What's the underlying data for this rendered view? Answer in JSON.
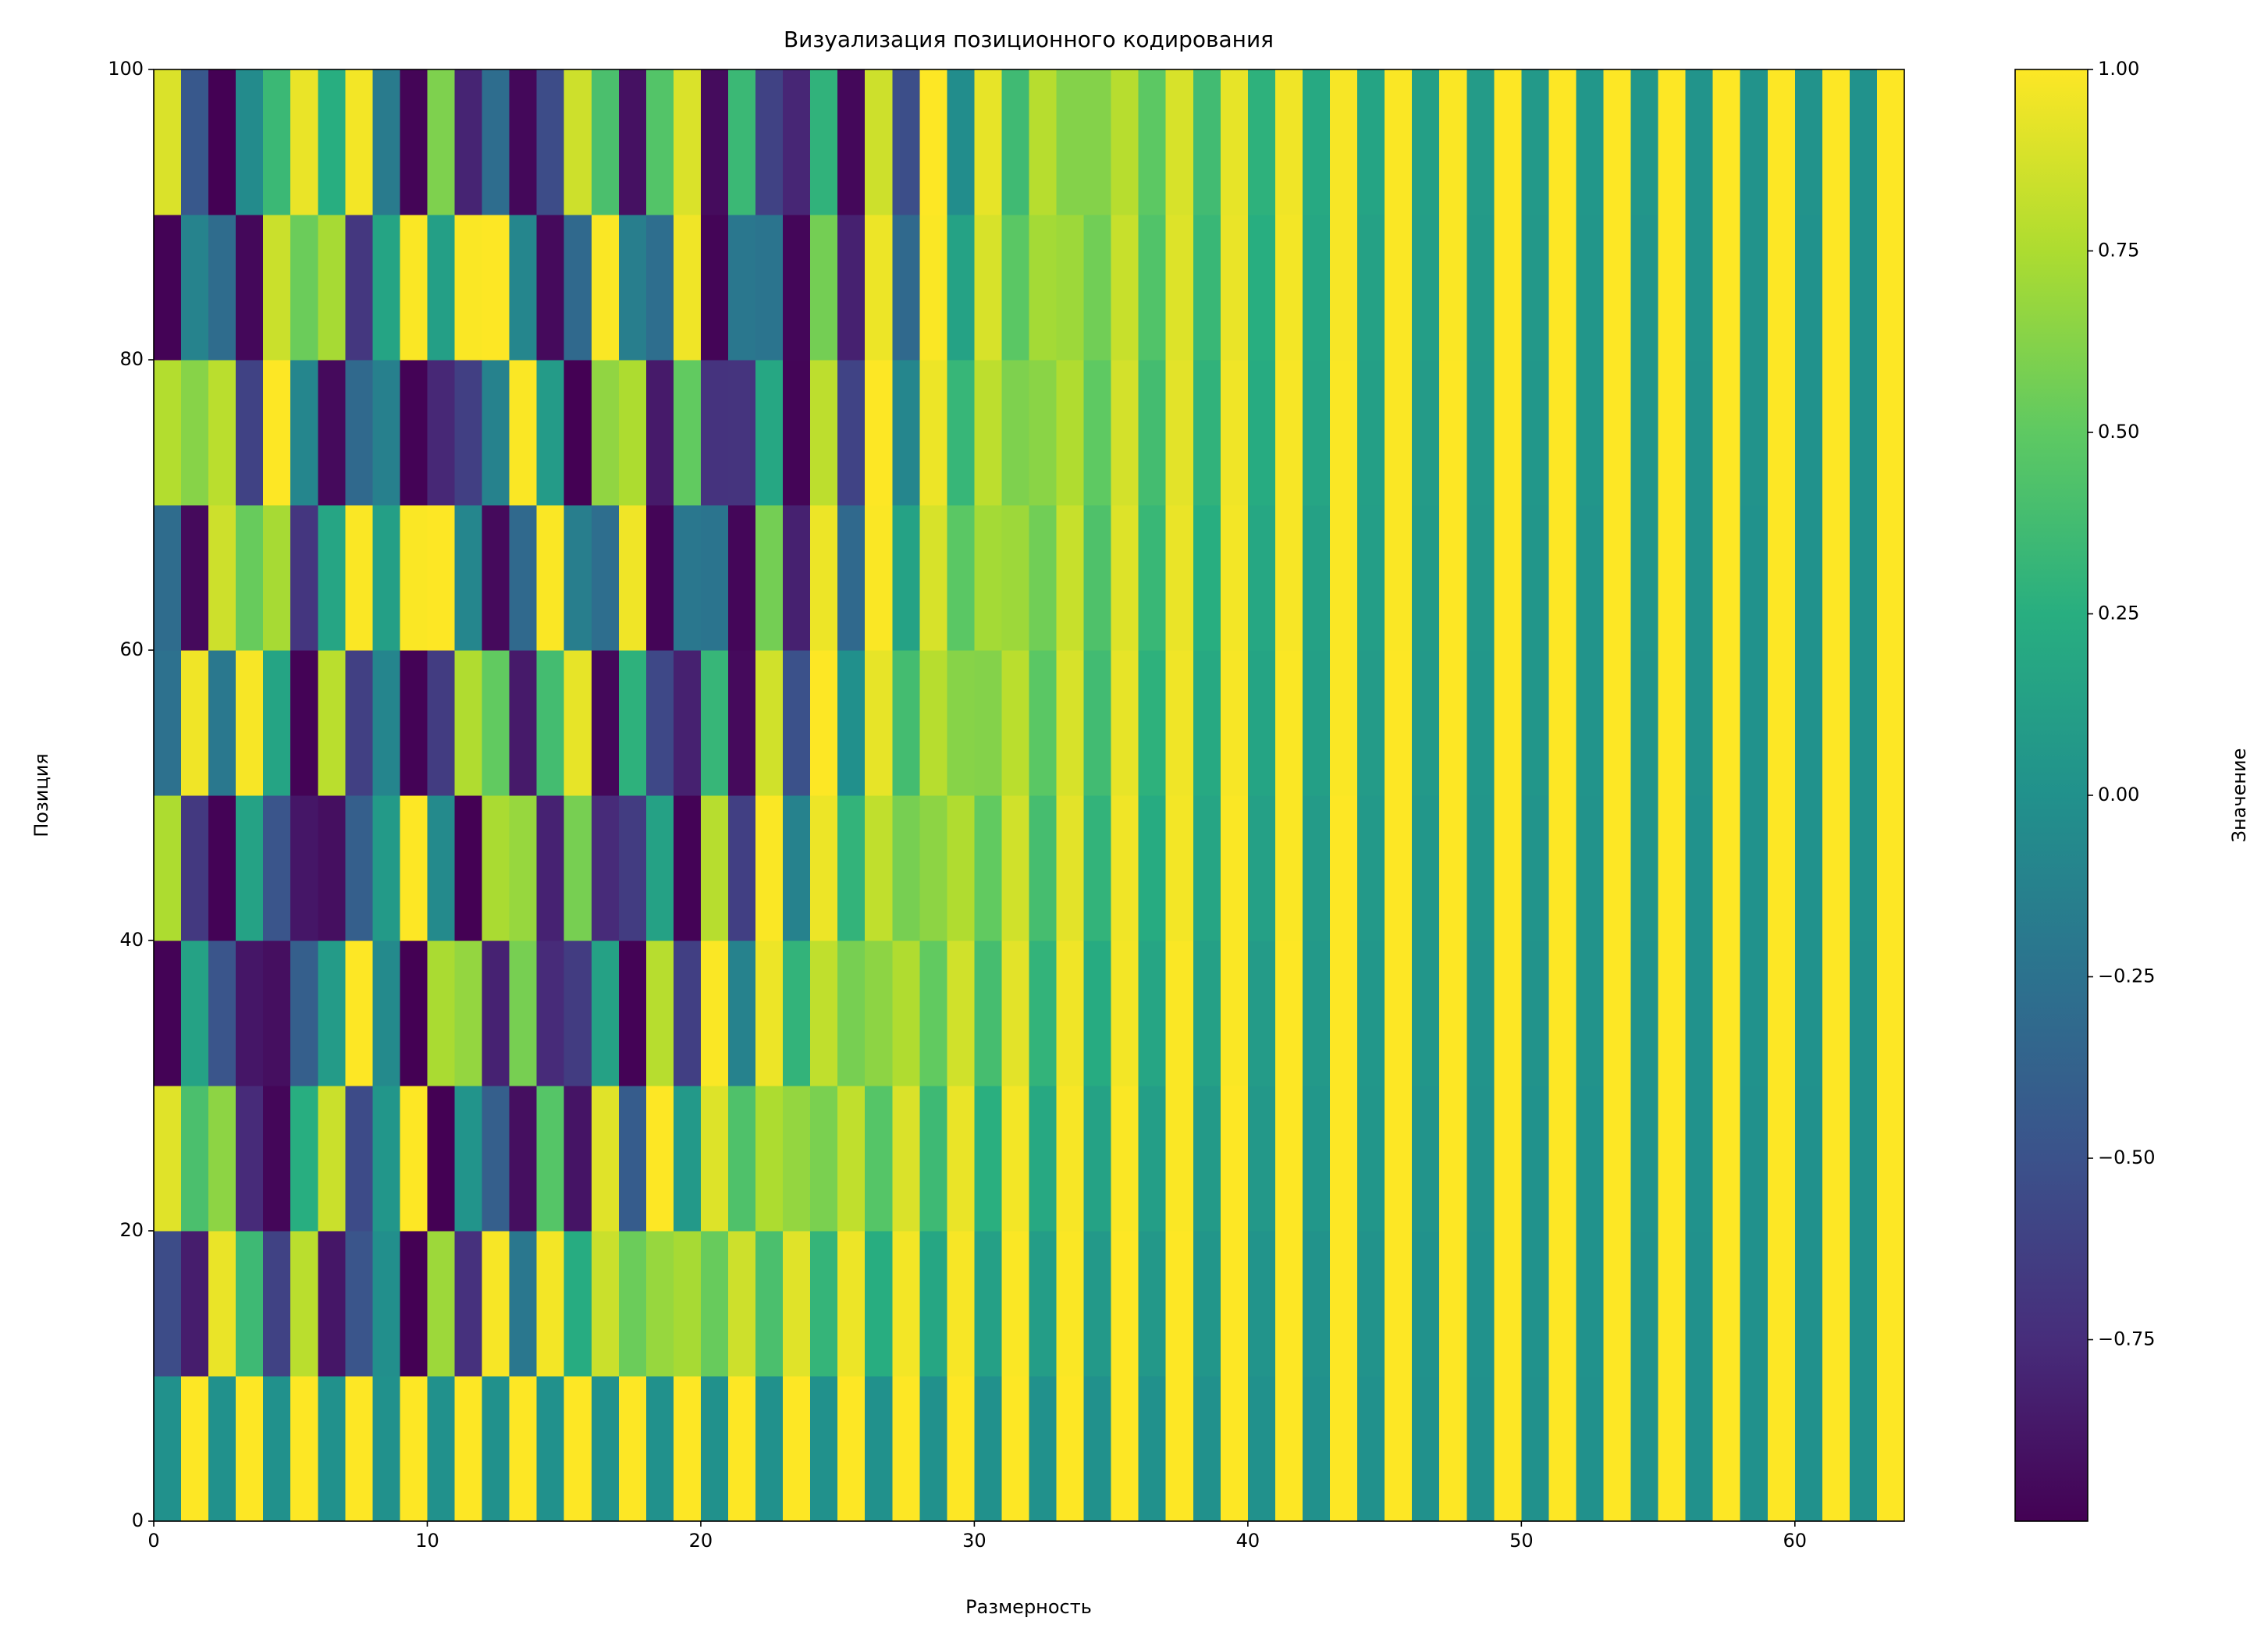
{
  "chart_data": {
    "type": "heatmap",
    "title": "Визуализация позиционного кодирования",
    "xlabel": "Размерность",
    "ylabel": "Позиция",
    "xlim": [
      0,
      64
    ],
    "ylim": [
      0,
      100
    ],
    "xticks": [
      0,
      10,
      20,
      30,
      40,
      50,
      60
    ],
    "yticks": [
      0,
      20,
      40,
      60,
      80,
      100
    ],
    "colormap": "viridis",
    "colorbar": {
      "label": "Значение",
      "lim": [
        -1,
        1
      ],
      "ticks": [
        {
          "value": -0.75,
          "label": "−0.75"
        },
        {
          "value": -0.5,
          "label": "−0.50"
        },
        {
          "value": -0.25,
          "label": "−0.25"
        },
        {
          "value": 0,
          "label": "0.00"
        },
        {
          "value": 0.25,
          "label": "0.25"
        },
        {
          "value": 0.5,
          "label": "0.50"
        },
        {
          "value": 0.75,
          "label": "0.75"
        },
        {
          "value": 1,
          "label": "1.00"
        }
      ]
    },
    "z": [
      [
        0,
        1,
        0,
        1,
        0,
        1,
        0,
        1,
        0,
        1,
        0,
        1,
        0,
        1,
        0,
        1,
        0,
        1,
        0,
        1,
        0,
        1,
        0,
        1,
        0,
        1,
        0,
        1,
        0,
        1,
        0,
        1,
        0,
        1,
        0,
        1,
        0,
        1,
        0,
        1,
        0,
        1,
        0,
        1,
        0,
        1,
        0,
        1,
        0,
        1,
        0,
        1,
        0,
        1,
        0,
        1,
        0,
        1,
        0,
        1,
        0,
        1,
        0,
        1
      ],
      [
        -0.54,
        -0.84,
        0.94,
        0.35,
        -0.61,
        0.79,
        -0.88,
        -0.48,
        -0.02,
        -1,
        0.7,
        -0.72,
        0.98,
        -0.21,
        0.97,
        0.23,
        0.84,
        0.54,
        0.68,
        0.73,
        0.53,
        0.85,
        0.41,
        0.91,
        0.31,
        0.95,
        0.24,
        0.97,
        0.18,
        0.98,
        0.13,
        0.99,
        0.1,
        0.99,
        0.07,
        1,
        0.06,
        1,
        0.04,
        1,
        0.03,
        1,
        0.02,
        1,
        0.02,
        1,
        0.01,
        1,
        0.01,
        1,
        0.01,
        1,
        0.01,
        1,
        0,
        1,
        0,
        1,
        0,
        1,
        0,
        1,
        0,
        1
      ],
      [
        0.91,
        0.41,
        0.65,
        -0.76,
        -0.97,
        0.25,
        0.84,
        -0.55,
        0.04,
        1,
        -1,
        0.03,
        -0.4,
        -0.92,
        0.46,
        -0.89,
        0.91,
        -0.42,
        1,
        0.07,
        0.9,
        0.43,
        0.75,
        0.67,
        0.59,
        0.81,
        0.46,
        0.89,
        0.35,
        0.94,
        0.26,
        0.97,
        0.2,
        0.98,
        0.15,
        0.99,
        0.11,
        0.99,
        0.08,
        1,
        0.06,
        1,
        0.05,
        1,
        0.04,
        1,
        0.03,
        1,
        0.02,
        1,
        0.01,
        1,
        0.01,
        1,
        0.01,
        1,
        0.01,
        1,
        0,
        1,
        0,
        1,
        0,
        1
      ],
      [
        -0.99,
        0.15,
        -0.48,
        -0.88,
        -0.92,
        -0.4,
        0.09,
        1,
        -0.06,
        -1,
        0.74,
        0.67,
        -0.81,
        0.58,
        -0.76,
        -0.65,
        0.14,
        -0.99,
        0.78,
        -0.63,
        0.99,
        -0.12,
        0.95,
        0.3,
        0.81,
        0.58,
        0.65,
        0.76,
        0.51,
        0.86,
        0.39,
        0.92,
        0.3,
        0.96,
        0.22,
        0.97,
        0.17,
        0.99,
        0.13,
        0.99,
        0.09,
        1,
        0.07,
        1,
        0.05,
        1,
        0.04,
        1,
        0.03,
        1,
        0.02,
        1,
        0.02,
        1,
        0.01,
        1,
        0.01,
        1,
        0.01,
        1,
        0.01,
        1,
        0,
        1
      ],
      [
        0.75,
        -0.67,
        -0.99,
        0.15,
        -0.48,
        -0.88,
        -0.92,
        -0.4,
        0.08,
        1,
        -0.06,
        -1,
        0.74,
        0.68,
        -0.81,
        0.58,
        -0.76,
        -0.65,
        0.14,
        -0.99,
        0.78,
        -0.63,
        0.99,
        -0.12,
        0.95,
        0.3,
        0.81,
        0.58,
        0.65,
        0.76,
        0.51,
        0.86,
        0.39,
        0.92,
        0.3,
        0.96,
        0.22,
        0.97,
        0.17,
        0.99,
        0.13,
        0.99,
        0.09,
        1,
        0.07,
        1,
        0.05,
        1,
        0.04,
        1,
        0.03,
        1,
        0.02,
        1,
        0.02,
        1,
        0.01,
        1,
        0.01,
        1,
        0.01,
        1,
        0.01,
        1
      ],
      [
        -0.26,
        0.96,
        -0.2,
        0.98,
        0.16,
        -0.99,
        0.79,
        -0.62,
        -0.1,
        -0.99,
        -0.65,
        0.76,
        0.51,
        -0.86,
        0.38,
        0.93,
        -0.96,
        0.28,
        -0.57,
        -0.82,
        0.32,
        -0.95,
        0.86,
        -0.51,
        1,
        -0.01,
        0.93,
        0.38,
        0.78,
        0.63,
        0.62,
        0.79,
        0.48,
        0.88,
        0.37,
        0.93,
        0.28,
        0.96,
        0.21,
        0.98,
        0.16,
        0.99,
        0.12,
        0.99,
        0.09,
        1,
        0.07,
        1,
        0.05,
        1,
        0.04,
        1,
        0.03,
        1,
        0.02,
        1,
        0.02,
        1,
        0.01,
        1,
        0.01,
        1,
        0.01,
        1
      ],
      [
        -0.3,
        -0.95,
        0.85,
        0.53,
        0.73,
        -0.69,
        0.17,
        0.99,
        0.12,
        0.99,
        1,
        -0.09,
        -0.95,
        -0.32,
        0.99,
        -0.15,
        -0.28,
        0.96,
        -0.98,
        -0.21,
        -0.23,
        -0.97,
        0.57,
        -0.82,
        0.95,
        -0.32,
        0.99,
        0.15,
        0.88,
        0.48,
        0.72,
        0.7,
        0.56,
        0.83,
        0.43,
        0.9,
        0.33,
        0.94,
        0.25,
        0.97,
        0.19,
        0.98,
        0.14,
        0.99,
        0.11,
        0.99,
        0.08,
        1,
        0.06,
        1,
        0.04,
        1,
        0.03,
        1,
        0.03,
        1,
        0.02,
        1,
        0.01,
        1,
        0.01,
        1,
        0.01,
        1
      ],
      [
        0.77,
        0.63,
        0.79,
        -0.61,
        1,
        -0.09,
        -0.95,
        -0.32,
        -0.14,
        -0.99,
        -0.78,
        -0.63,
        -0.12,
        0.99,
        0.09,
        -1,
        0.66,
        0.75,
        -0.86,
        0.51,
        -0.71,
        -0.7,
        0.19,
        -0.98,
        0.8,
        -0.6,
        1,
        -0.09,
        0.95,
        0.32,
        0.8,
        0.6,
        0.64,
        0.76,
        0.5,
        0.87,
        0.38,
        0.92,
        0.29,
        0.96,
        0.22,
        0.98,
        0.17,
        0.99,
        0.12,
        0.99,
        0.09,
        1,
        0.07,
        1,
        0.05,
        1,
        0.04,
        1,
        0.03,
        1,
        0.02,
        1,
        0.02,
        1,
        0.01,
        1,
        0.01,
        1
      ],
      [
        -0.99,
        -0.11,
        -0.3,
        -0.96,
        0.84,
        0.54,
        0.73,
        -0.68,
        0.16,
        0.99,
        0.12,
        0.99,
        1,
        -0.09,
        -0.95,
        -0.32,
        0.99,
        -0.15,
        -0.28,
        0.96,
        -0.98,
        -0.21,
        -0.23,
        -0.97,
        0.57,
        -0.82,
        0.95,
        -0.32,
        0.99,
        0.15,
        0.88,
        0.48,
        0.72,
        0.7,
        0.56,
        0.83,
        0.44,
        0.9,
        0.33,
        0.94,
        0.25,
        0.97,
        0.19,
        0.98,
        0.14,
        0.99,
        0.11,
        0.99,
        0.08,
        1,
        0.06,
        1,
        0.04,
        1,
        0.03,
        1,
        0.03,
        1,
        0.02,
        1,
        0.01,
        1,
        0.01,
        1
      ],
      [
        0.89,
        -0.45,
        -1,
        -0.05,
        0.34,
        0.94,
        0.25,
        0.97,
        -0.18,
        -0.98,
        0.6,
        -0.8,
        -0.29,
        -0.96,
        -0.54,
        0.85,
        0.41,
        -0.91,
        0.45,
        0.89,
        -0.94,
        0.34,
        -0.61,
        -0.79,
        0.29,
        -0.96,
        0.85,
        -0.53,
        1,
        -0.03,
        0.93,
        0.36,
        0.78,
        0.62,
        0.62,
        0.78,
        0.49,
        0.88,
        0.37,
        0.93,
        0.28,
        0.96,
        0.21,
        0.98,
        0.16,
        0.99,
        0.12,
        0.99,
        0.09,
        1,
        0.07,
        1,
        0.05,
        1,
        0.04,
        1,
        0.03,
        1,
        0.02,
        1,
        0.02,
        1,
        0.01,
        1
      ]
    ]
  }
}
